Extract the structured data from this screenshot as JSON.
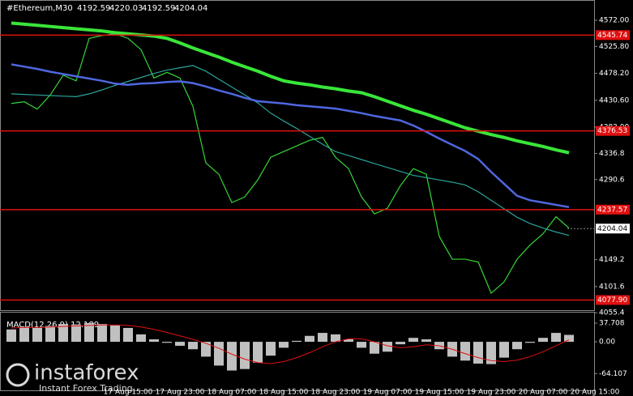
{
  "chart_data": [
    {
      "type": "line",
      "title": "#Ethereum,M30",
      "ohlc": [
        4192.59,
        4220.03,
        4192.59,
        4204.04
      ],
      "categories": [
        null,
        null,
        null,
        null,
        null,
        null,
        null,
        null,
        null,
        "17 Aug 15:00",
        null,
        null,
        null,
        "17 Aug 23:00",
        null,
        null,
        null,
        "18 Aug 07:00",
        null,
        null,
        null,
        "18 Aug 15:00",
        null,
        null,
        null,
        "18 Aug 23:00",
        null,
        null,
        null,
        "19 Aug 07:00",
        null,
        null,
        null,
        "19 Aug 15:00",
        null,
        null,
        null,
        "19 Aug 23:00",
        null,
        null,
        null,
        "20 Aug 07:00",
        null,
        null,
        null,
        "20 Aug 15:00"
      ],
      "series": [
        {
          "color": "#36d636",
          "width": 1.2,
          "values": [
            4425,
            4428,
            4415,
            4440,
            4475,
            4465,
            4540,
            4545,
            4548,
            4540,
            4520,
            4470,
            4480,
            4470,
            4420,
            4320,
            4300,
            4250,
            4260,
            4290,
            4330,
            4340,
            4350,
            4360,
            4365,
            4330,
            4310,
            4260,
            4230,
            4240,
            4280,
            4310,
            4300,
            4190,
            4150,
            4150,
            4145,
            4090,
            4110,
            4150,
            4175,
            4195,
            4225,
            4205,
            null,
            null
          ]
        },
        {
          "color": "#2aa39a",
          "width": 1.2,
          "values": [
            4442,
            4441,
            4440,
            4439,
            4438,
            4437,
            4442,
            4449,
            4457,
            4464,
            4471,
            4478,
            4484,
            4488,
            4492,
            4482,
            4468,
            4454,
            4440,
            4426,
            4408,
            4394,
            4381,
            4367,
            4353,
            4340,
            4333,
            4326,
            4319,
            4312,
            4305,
            4298,
            4294,
            4290,
            4286,
            4281,
            4269,
            4254,
            4239,
            4224,
            4213,
            4205,
            4198,
            4192,
            null,
            null
          ]
        },
        {
          "color": "#4f67e0",
          "width": 2.5,
          "values": [
            4494,
            4490,
            4486,
            4481,
            4477,
            4473,
            4469,
            4465,
            4460,
            4458,
            4460,
            4461,
            4463,
            4464,
            4461,
            4455,
            4448,
            4442,
            4435,
            4429,
            4427,
            4425,
            4422,
            4420,
            4418,
            4416,
            4412,
            4408,
            4403,
            4399,
            4395,
            4386,
            4375,
            4363,
            4352,
            4341,
            4327,
            4304,
            4283,
            4262,
            4254,
            4250,
            4246,
            4242,
            null,
            null
          ]
        },
        {
          "color": "#39e639",
          "width": 4,
          "values": [
            4567,
            4565,
            4563,
            4561,
            4559,
            4557,
            4555,
            4553,
            4550,
            4548,
            4546,
            4544,
            4540,
            4532,
            4523,
            4515,
            4507,
            4498,
            4490,
            4482,
            4473,
            4465,
            4461,
            4458,
            4454,
            4451,
            4447,
            4444,
            4437,
            4429,
            4421,
            4413,
            4406,
            4398,
            4390,
            4382,
            4376,
            4370,
            4365,
            4359,
            4354,
            4349,
            4343,
            4338,
            null,
            null
          ]
        }
      ],
      "levels": [
        {
          "value": 4545.74,
          "label": "4545.74"
        },
        {
          "value": 4376.53,
          "label": "4376.53"
        },
        {
          "value": 4237.57,
          "label": "4237.57"
        },
        {
          "value": 4077.9,
          "label": "4077.90"
        }
      ],
      "level_color": "#e01010",
      "price": 4204.04,
      "ylim": [
        4060,
        4582
      ],
      "yticks": [
        {
          "value": 4572,
          "label": "4572.00"
        },
        {
          "value": 4525.8,
          "label": "4525.80"
        },
        {
          "value": 4478.2,
          "label": "4478.20"
        },
        {
          "value": 4430.6,
          "label": "4430.60"
        },
        {
          "value": 4383,
          "label": "4383.00"
        },
        4336.8,
        4290.6,
        4149.2,
        4101.6,
        4055.4
      ]
    },
    {
      "type": "bar",
      "title": "MACD(12,26,9) 12.189",
      "color": "#c0c0c0",
      "values": [
        25,
        30,
        28,
        32,
        36,
        35,
        38,
        36,
        33,
        28,
        15,
        5,
        -2,
        -8,
        -15,
        -30,
        -48,
        -58,
        -55,
        -42,
        -28,
        -12,
        2,
        12,
        18,
        15,
        5,
        -12,
        -24,
        -20,
        -5,
        8,
        5,
        -15,
        -30,
        -38,
        -44,
        -45,
        -32,
        -15,
        -2,
        8,
        18,
        14,
        null,
        null
      ],
      "signal": {
        "color": "#e01010",
        "values": [
          28,
          29,
          29,
          30,
          31,
          32,
          33,
          34,
          34,
          33,
          30,
          25,
          19,
          12,
          5,
          -3,
          -13,
          -25,
          -35,
          -42,
          -44,
          -40,
          -32,
          -22,
          -10,
          0,
          6,
          6,
          0,
          -8,
          -12,
          -10,
          -6,
          -8,
          -15,
          -24,
          -32,
          -38,
          -40,
          -37,
          -30,
          -20,
          -8,
          4,
          null,
          null
        ]
      },
      "ylim": [
        -98,
        59
      ],
      "yticks": [
        37.708,
        {
          "value": 0,
          "label": "0.00"
        },
        -64.107
      ]
    }
  ],
  "logo": {
    "name": "instaforex",
    "tagline": "Instant Forex Trading"
  }
}
